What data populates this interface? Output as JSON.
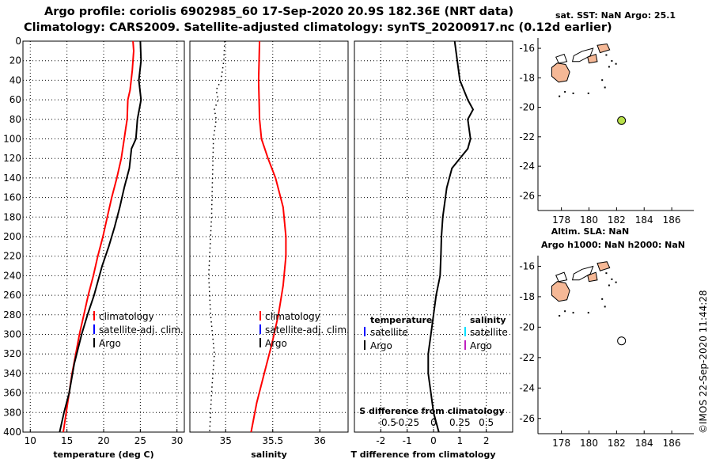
{
  "header": {
    "title_line1": "Argo profile: coriolis 6902985_60 17-Sep-2020 20.9S 182.36E (NRT data)",
    "title_line2": "Climatology: CARS2009. Satellite-adjusted climatology: synTS_20200917.nc (0.12d earlier)"
  },
  "footer": {
    "credit": "©IMOS 22-Sep-2020 11:44:28"
  },
  "colors": {
    "climatology": "#ff0000",
    "satellite": "#0000ff",
    "argo": "#000000",
    "salinity_satellite": "#00e0ff",
    "salinity_argo": "#c020c0",
    "land": "#f5b896",
    "argo_dot": "#b8e04a"
  },
  "chart_data": [
    {
      "type": "line",
      "name": "temperature-profile",
      "xlabel": "temperature (deg C)",
      "xlim": [
        9,
        31
      ],
      "xticks": [
        10,
        15,
        20,
        25,
        30
      ],
      "ylim": [
        0,
        400
      ],
      "yticks": [
        0,
        20,
        40,
        60,
        80,
        100,
        120,
        140,
        160,
        180,
        200,
        220,
        240,
        260,
        280,
        300,
        320,
        340,
        360,
        380,
        400
      ],
      "legend": [
        "climatology",
        "satellite-adj. clim.",
        "Argo"
      ],
      "legend_placement": "lower-right",
      "series": [
        {
          "name": "climatology",
          "style": "solid",
          "color": "#ff0000",
          "points": [
            [
              24.0,
              0
            ],
            [
              24.1,
              10
            ],
            [
              23.9,
              30
            ],
            [
              23.6,
              50
            ],
            [
              23.3,
              60
            ],
            [
              23.2,
              80
            ],
            [
              23.0,
              90
            ],
            [
              22.8,
              100
            ],
            [
              22.4,
              120
            ],
            [
              21.8,
              140
            ],
            [
              21.1,
              160
            ],
            [
              20.5,
              180
            ],
            [
              19.9,
              200
            ],
            [
              19.2,
              220
            ],
            [
              18.6,
              240
            ],
            [
              17.9,
              260
            ],
            [
              17.3,
              280
            ],
            [
              16.7,
              300
            ],
            [
              16.2,
              320
            ],
            [
              15.7,
              340
            ],
            [
              15.3,
              360
            ],
            [
              14.9,
              380
            ],
            [
              14.5,
              400
            ]
          ]
        },
        {
          "name": "Argo",
          "style": "solid",
          "color": "#000000",
          "points": [
            [
              25.0,
              0
            ],
            [
              25.1,
              20
            ],
            [
              24.8,
              40
            ],
            [
              25.1,
              60
            ],
            [
              24.6,
              80
            ],
            [
              24.4,
              100
            ],
            [
              23.8,
              110
            ],
            [
              23.5,
              130
            ],
            [
              22.8,
              150
            ],
            [
              22.2,
              170
            ],
            [
              21.5,
              190
            ],
            [
              20.7,
              210
            ],
            [
              19.8,
              230
            ],
            [
              18.7,
              260
            ],
            [
              17.8,
              280
            ],
            [
              17.0,
              300
            ],
            [
              16.0,
              330
            ],
            [
              15.3,
              360
            ],
            [
              14.6,
              380
            ],
            [
              14.0,
              400
            ]
          ]
        }
      ]
    },
    {
      "type": "line",
      "name": "salinity-profile",
      "xlabel": "salinity",
      "xlim": [
        34.62,
        36.3
      ],
      "xticks": [
        35,
        35.5,
        36
      ],
      "xtick_labels": [
        "35",
        "35.5",
        "36"
      ],
      "ylim": [
        0,
        400
      ],
      "legend": [
        "climatology",
        "satellite-adj. clim.",
        "Argo"
      ],
      "legend_placement": "lower-right",
      "series": [
        {
          "name": "climatology",
          "style": "solid",
          "color": "#ff0000",
          "points": [
            [
              35.36,
              0
            ],
            [
              35.35,
              40
            ],
            [
              35.36,
              80
            ],
            [
              35.38,
              100
            ],
            [
              35.45,
              120
            ],
            [
              35.53,
              140
            ],
            [
              35.61,
              170
            ],
            [
              35.64,
              200
            ],
            [
              35.64,
              220
            ],
            [
              35.61,
              250
            ],
            [
              35.56,
              280
            ],
            [
              35.49,
              310
            ],
            [
              35.41,
              340
            ],
            [
              35.33,
              370
            ],
            [
              35.27,
              400
            ]
          ]
        },
        {
          "name": "Argo",
          "style": "dotted",
          "color": "#000000",
          "points": [
            [
              34.99,
              0
            ],
            [
              34.98,
              20
            ],
            [
              34.95,
              40
            ],
            [
              34.9,
              50
            ],
            [
              34.92,
              60
            ],
            [
              34.88,
              70
            ],
            [
              34.9,
              80
            ],
            [
              34.87,
              100
            ],
            [
              34.86,
              140
            ],
            [
              34.85,
              180
            ],
            [
              34.82,
              240
            ],
            [
              34.84,
              280
            ],
            [
              34.86,
              300
            ],
            [
              34.88,
              320
            ],
            [
              34.85,
              360
            ],
            [
              34.83,
              400
            ]
          ]
        }
      ]
    },
    {
      "type": "line",
      "name": "difference-profile",
      "xlabel": "T difference from climatology",
      "xlabel_top": "S difference from climatology",
      "xlim": [
        -3,
        3
      ],
      "xticks": [
        -2,
        -1,
        0,
        1,
        2
      ],
      "xtick_labels": [
        "-2",
        "-1",
        "0",
        "1",
        "2"
      ],
      "xticks_top": [
        -2,
        -1,
        0,
        1,
        2
      ],
      "xtick_labels_top": [
        "-0.5",
        "-0.25",
        "0",
        "0.25",
        "0.5"
      ],
      "ylim": [
        0,
        400
      ],
      "legend_groups": [
        {
          "title": "temperature",
          "entries": [
            "satellite",
            "Argo"
          ]
        },
        {
          "title": "salinity",
          "entries": [
            "satellite",
            "Argo"
          ]
        }
      ],
      "series": [
        {
          "name": "T difference Argo",
          "style": "solid",
          "color": "#000000",
          "points": [
            [
              0.8,
              0
            ],
            [
              0.9,
              20
            ],
            [
              1.0,
              40
            ],
            [
              1.3,
              60
            ],
            [
              1.5,
              70
            ],
            [
              1.3,
              80
            ],
            [
              1.4,
              100
            ],
            [
              1.3,
              110
            ],
            [
              1.0,
              120
            ],
            [
              0.7,
              130
            ],
            [
              0.5,
              150
            ],
            [
              0.35,
              180
            ],
            [
              0.3,
              200
            ],
            [
              0.28,
              220
            ],
            [
              0.25,
              240
            ],
            [
              0.1,
              260
            ],
            [
              0.0,
              280
            ],
            [
              -0.1,
              300
            ],
            [
              -0.2,
              320
            ],
            [
              -0.2,
              340
            ],
            [
              -0.1,
              360
            ],
            [
              0.0,
              380
            ],
            [
              0.2,
              400
            ]
          ]
        }
      ]
    },
    {
      "type": "scatter",
      "name": "map-sst",
      "title": "sat. SST: NaN Argo: 25.1",
      "xlim": [
        176.3,
        187.6
      ],
      "ylim": [
        -27,
        -15.3
      ],
      "xticks": [
        178,
        180,
        182,
        184,
        186
      ],
      "yticks": [
        -16,
        -18,
        -20,
        -22,
        -24,
        -26
      ],
      "points": [
        {
          "name": "argo",
          "x": 182.36,
          "y": -20.9
        }
      ]
    },
    {
      "type": "scatter",
      "name": "map-sla",
      "title": "Altim. SLA: NaN",
      "subtitle": "Argo h1000: NaN h2000: NaN",
      "xlim": [
        176.3,
        187.6
      ],
      "ylim": [
        -27,
        -15.3
      ],
      "xticks": [
        178,
        180,
        182,
        184,
        186
      ],
      "yticks": [
        -16,
        -18,
        -20,
        -22,
        -24,
        -26
      ],
      "points": [
        {
          "name": "argo",
          "x": 182.36,
          "y": -20.9
        }
      ]
    }
  ]
}
